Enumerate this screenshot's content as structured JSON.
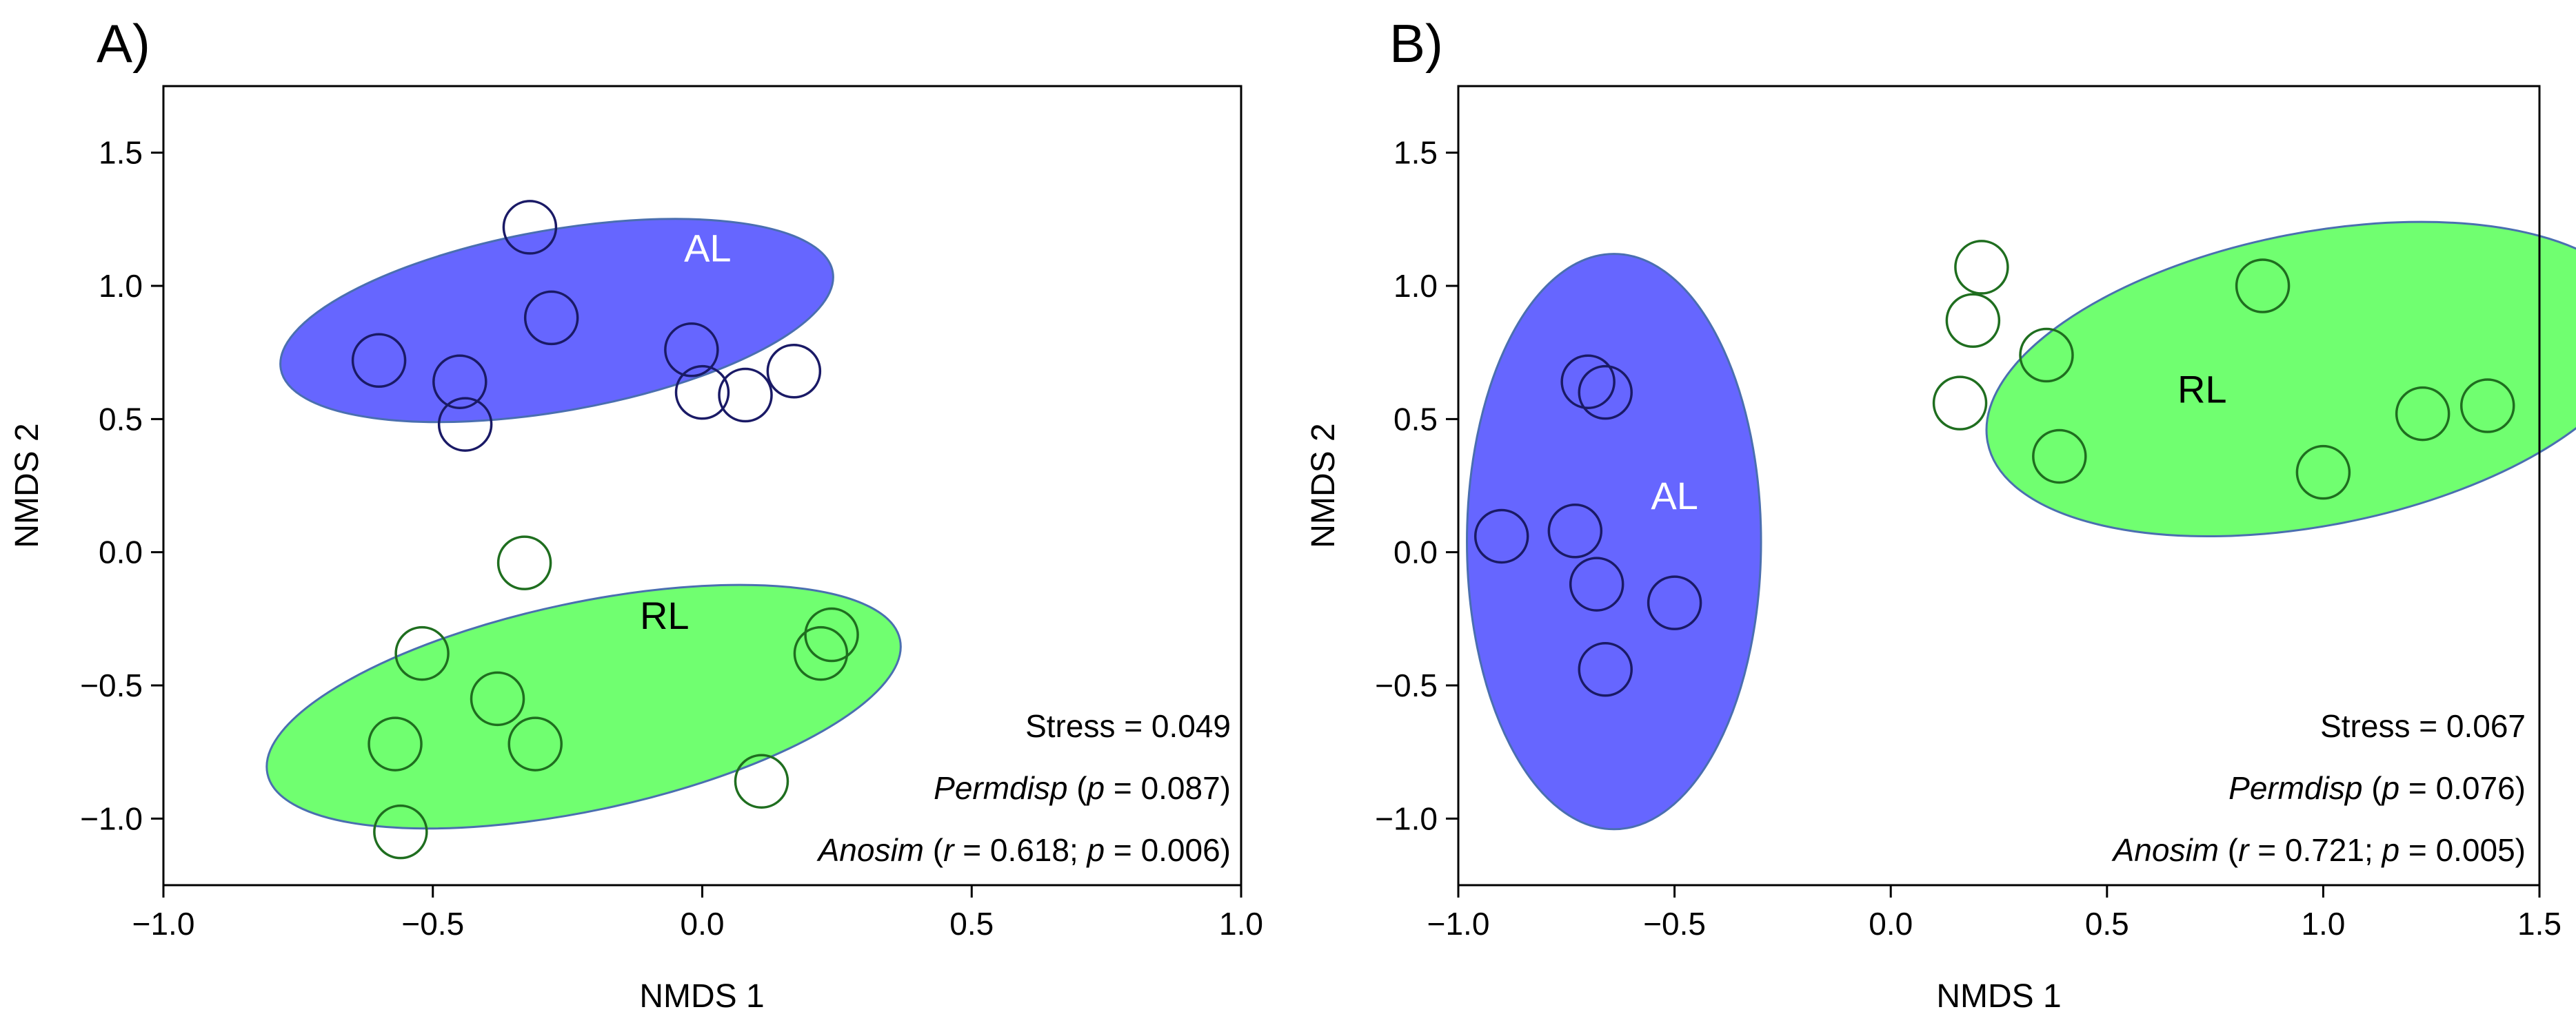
{
  "colors": {
    "al_fill": "#6666ff",
    "al_stroke": "#1a1a66",
    "rl_fill": "#70ff70",
    "rl_stroke": "#1f6e1f",
    "ellipse_edge": "#4a6fb0",
    "axis": "#000000"
  },
  "chart_data": [
    {
      "type": "scatter",
      "panel_label": "A)",
      "xlabel": "NMDS 1",
      "ylabel": "NMDS 2",
      "xlim": [
        -1.0,
        1.0
      ],
      "ylim": [
        -1.25,
        1.75
      ],
      "xticks": [
        -1.0,
        -0.5,
        0.0,
        0.5,
        1.0
      ],
      "xtick_labels": [
        "−1.0",
        "−0.5",
        "0.0",
        "0.5",
        "1.0"
      ],
      "yticks": [
        -1.0,
        -0.5,
        0.0,
        0.5,
        1.0,
        1.5
      ],
      "ytick_labels": [
        "−1.0",
        "−0.5",
        "0.0",
        "0.5",
        "1.0",
        "1.5"
      ],
      "grid": false,
      "groups": [
        {
          "name": "AL",
          "label_pos": [
            0.01,
            1.13
          ],
          "label_color": "#ffffff",
          "ellipse": {
            "cx": -0.27,
            "cy": 0.87,
            "rx": 0.52,
            "ry": 0.34,
            "angle_deg": 10
          },
          "points": [
            [
              -0.32,
              1.22
            ],
            [
              -0.28,
              0.88
            ],
            [
              -0.6,
              0.72
            ],
            [
              -0.45,
              0.64
            ],
            [
              -0.44,
              0.48
            ],
            [
              -0.02,
              0.76
            ],
            [
              -0.0,
              0.6
            ],
            [
              0.08,
              0.59
            ],
            [
              0.17,
              0.68
            ]
          ]
        },
        {
          "name": "RL",
          "label_pos": [
            -0.07,
            -0.25
          ],
          "label_color": "#000000",
          "ellipse": {
            "cx": -0.22,
            "cy": -0.58,
            "rx": 0.6,
            "ry": 0.39,
            "angle_deg": 12
          },
          "points": [
            [
              -0.33,
              -0.04
            ],
            [
              -0.52,
              -0.38
            ],
            [
              -0.38,
              -0.55
            ],
            [
              -0.57,
              -0.72
            ],
            [
              -0.31,
              -0.72
            ],
            [
              -0.56,
              -1.05
            ],
            [
              0.24,
              -0.31
            ],
            [
              0.22,
              -0.38
            ],
            [
              0.11,
              -0.86
            ]
          ]
        }
      ],
      "stats": {
        "stress": "Stress = 0.049",
        "permdisp_name": "Permdisp",
        "permdisp_open": " (",
        "permdisp_p": "p",
        "permdisp_val": " = 0.087)",
        "anosim_name": "Anosim",
        "anosim_open": " (",
        "anosim_r": "r",
        "anosim_r_val": " = 0.618; ",
        "anosim_p": "p",
        "anosim_p_val": " = 0.006)"
      }
    },
    {
      "type": "scatter",
      "panel_label": "B)",
      "xlabel": "NMDS 1",
      "ylabel": "NMDS 2",
      "xlim": [
        -1.0,
        1.5
      ],
      "ylim": [
        -1.25,
        1.75
      ],
      "xticks": [
        -1.0,
        -0.5,
        0.0,
        0.5,
        1.0,
        1.5
      ],
      "xtick_labels": [
        "−1.0",
        "−0.5",
        "0.0",
        "0.5",
        "1.0",
        "1.5"
      ],
      "yticks": [
        -1.0,
        -0.5,
        0.0,
        0.5,
        1.0,
        1.5
      ],
      "ytick_labels": [
        "−1.0",
        "−0.5",
        "0.0",
        "0.5",
        "1.0",
        "1.5"
      ],
      "grid": false,
      "groups": [
        {
          "name": "AL",
          "label_pos": [
            -0.5,
            0.2
          ],
          "label_color": "#ffffff",
          "ellipse": {
            "cx": -0.64,
            "cy": 0.04,
            "rx": 0.34,
            "ry": 1.08,
            "angle_deg": 0
          },
          "points": [
            [
              -0.7,
              0.64
            ],
            [
              -0.66,
              0.6
            ],
            [
              -0.9,
              0.06
            ],
            [
              -0.73,
              0.08
            ],
            [
              -0.68,
              -0.12
            ],
            [
              -0.5,
              -0.19
            ],
            [
              -0.66,
              -0.44
            ]
          ]
        },
        {
          "name": "RL",
          "label_pos": [
            0.72,
            0.6
          ],
          "label_color": "#000000",
          "ellipse": {
            "cx": 0.98,
            "cy": 0.65,
            "rx": 0.77,
            "ry": 0.55,
            "angle_deg": 11
          },
          "points": [
            [
              0.21,
              1.07
            ],
            [
              0.19,
              0.87
            ],
            [
              0.36,
              0.74
            ],
            [
              0.16,
              0.56
            ],
            [
              0.39,
              0.36
            ],
            [
              0.86,
              1.0
            ],
            [
              1.23,
              0.52
            ],
            [
              1.38,
              0.55
            ],
            [
              1.0,
              0.3
            ]
          ]
        }
      ],
      "stats": {
        "stress": "Stress = 0.067",
        "permdisp_name": "Permdisp",
        "permdisp_open": " (",
        "permdisp_p": "p",
        "permdisp_val": " = 0.076)",
        "anosim_name": "Anosim",
        "anosim_open": " (",
        "anosim_r": "r",
        "anosim_r_val": " = 0.721; ",
        "anosim_p": "p",
        "anosim_p_val": " = 0.005)"
      }
    }
  ]
}
